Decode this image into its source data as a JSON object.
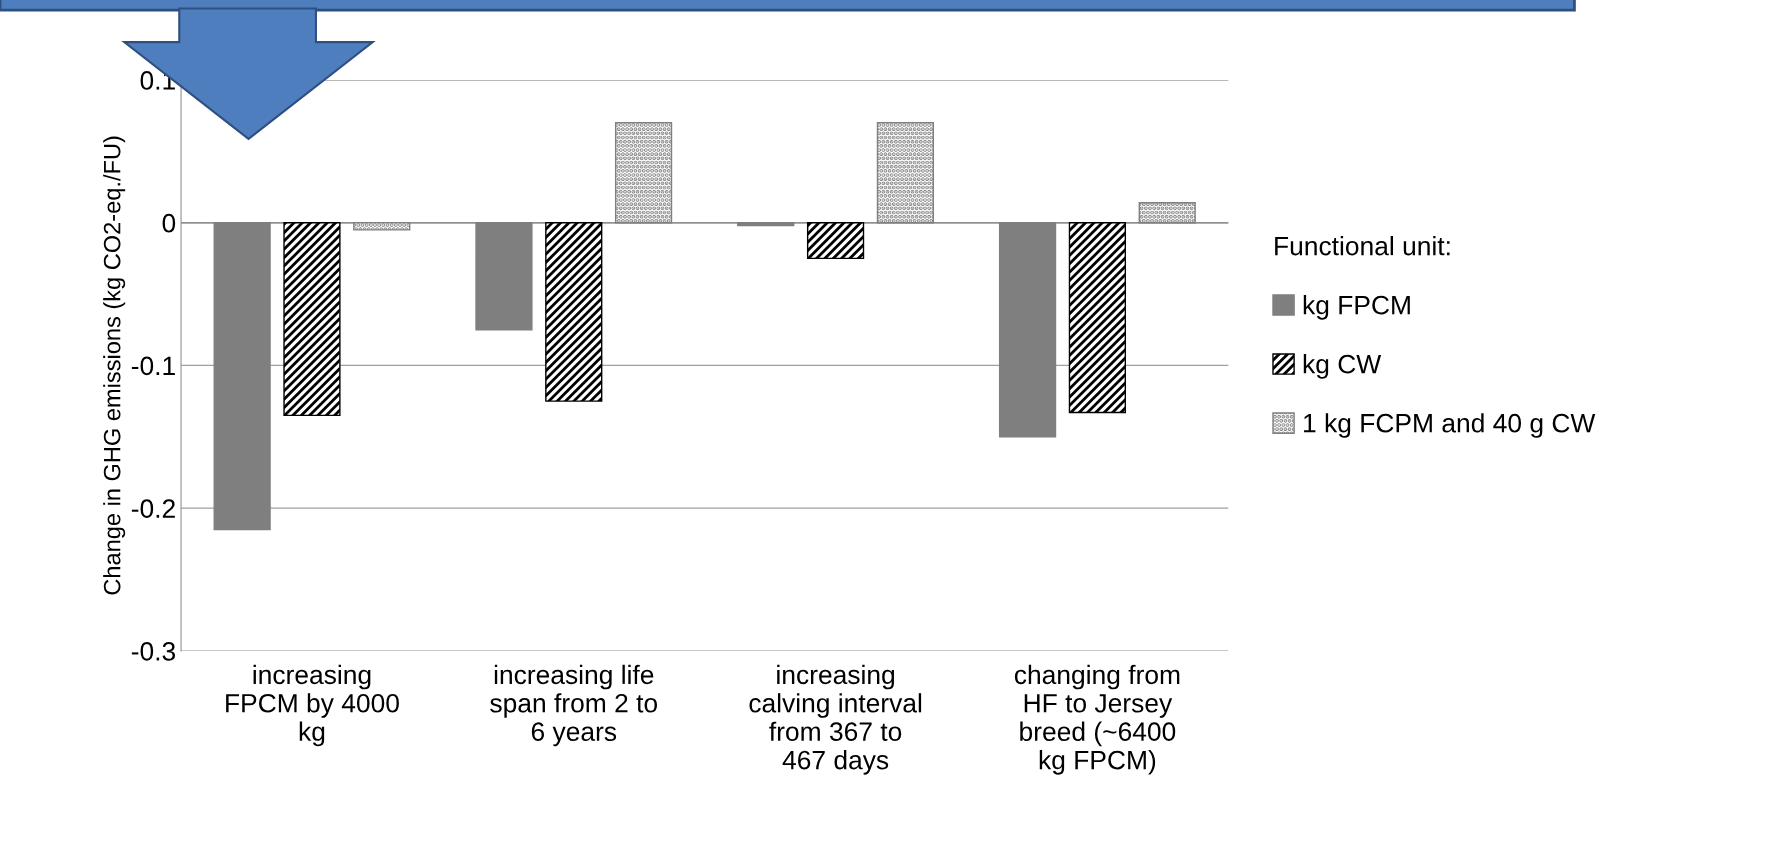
{
  "chart_data": {
    "type": "bar",
    "ylabel": "Change in GHG emissions (kg CO2-eq./FU)",
    "legend_title": "Functional unit:",
    "categories": [
      "increasing\nFPCM by 4000\nkg",
      "increasing life\nspan from 2 to\n6 years",
      "increasing\ncalving interval\nfrom 367 to\n467 days",
      "changing from\nHF to Jersey\nbreed (~6400\nkg FPCM)"
    ],
    "series": [
      {
        "name": "kg FPCM",
        "color": "#7f7f7f",
        "values": [
          -0.215,
          -0.075,
          -0.002,
          -0.15
        ]
      },
      {
        "name": "kg CW",
        "color": "#000000",
        "values": [
          -0.135,
          -0.125,
          -0.025,
          -0.133
        ]
      },
      {
        "name": "1 kg FCPM and 40 g CW",
        "color": "#808080",
        "values": [
          -0.005,
          0.07,
          0.07,
          0.014
        ]
      }
    ],
    "ylim": [
      -0.3,
      0.1
    ],
    "yticks": [
      {
        "value": -0.3,
        "label": "-0.3"
      },
      {
        "value": -0.2,
        "label": "-0.2"
      },
      {
        "value": -0.1,
        "label": "-0.1"
      },
      {
        "value": 0,
        "label": "0"
      },
      {
        "value": 0.1,
        "label": "0.1"
      }
    ],
    "grid": "y",
    "legend": "right"
  }
}
